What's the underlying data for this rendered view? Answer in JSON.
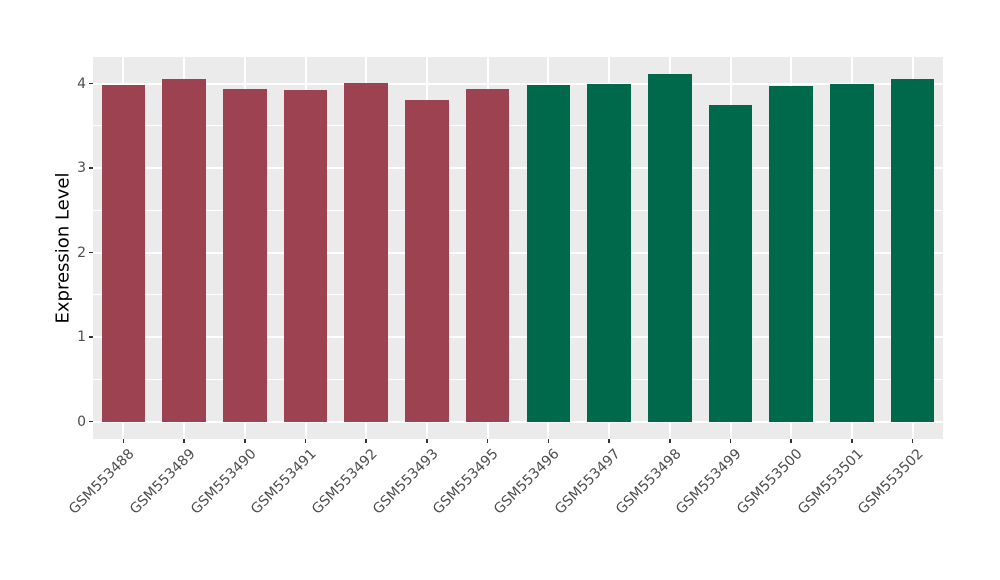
{
  "chart_data": {
    "type": "bar",
    "title": "",
    "xlabel": "",
    "ylabel": "Expression Level",
    "categories": [
      "GSM553488",
      "GSM553489",
      "GSM553490",
      "GSM553491",
      "GSM553492",
      "GSM553493",
      "GSM553495",
      "GSM553496",
      "GSM553497",
      "GSM553498",
      "GSM553499",
      "GSM553500",
      "GSM553501",
      "GSM553502"
    ],
    "values": [
      3.98,
      4.05,
      3.94,
      3.93,
      4.01,
      3.81,
      3.94,
      3.98,
      3.99,
      4.11,
      3.75,
      3.97,
      4.0,
      4.06
    ],
    "groups": [
      "group1",
      "group1",
      "group1",
      "group1",
      "group1",
      "group1",
      "group1",
      "group2",
      "group2",
      "group2",
      "group2",
      "group2",
      "group2",
      "group2"
    ],
    "group_colors": {
      "group1": "#9C4251",
      "group2": "#00684B"
    },
    "yticks": [
      0,
      1,
      2,
      3,
      4
    ],
    "ytick_labels": [
      "0",
      "1",
      "2",
      "3",
      "4"
    ],
    "minor_ticks": [
      0.5,
      1.5,
      2.5,
      3.5
    ],
    "ylim": [
      -0.205,
      4.315
    ],
    "bar_rel_width": 0.72,
    "x_tick_rotation_deg": 45,
    "legend": "none",
    "grid": "on",
    "style": {
      "panel_bg": "#EBEBEB",
      "grid_color": "#FFFFFF",
      "tick_color": "#333333",
      "tick_label_color": "#4D4D4D",
      "axis_title_color": "#000000",
      "figure_bg": "#FFFFFF"
    }
  }
}
